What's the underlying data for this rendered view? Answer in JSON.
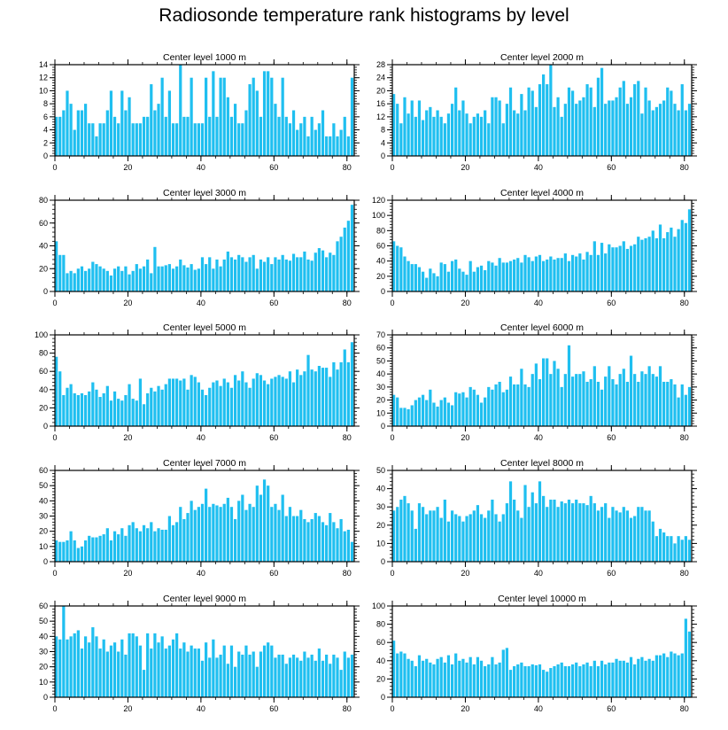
{
  "title": "Radiosonde temperature rank histograms by level",
  "bar_color": "#1fbff0",
  "chart_data": [
    {
      "type": "bar",
      "title": "Center level 1000 m",
      "xlabel": "",
      "ylabel": "",
      "xlim": [
        0,
        82
      ],
      "ylim": [
        0,
        14
      ],
      "xticks": [
        0,
        20,
        40,
        60,
        80
      ],
      "yticks": [
        0,
        2,
        4,
        6,
        8,
        10,
        12,
        14
      ],
      "categories_start": 0,
      "values": [
        6,
        6,
        7,
        10,
        8,
        4,
        7,
        7,
        8,
        5,
        5,
        3,
        5,
        5,
        7,
        10,
        6,
        5,
        10,
        7,
        9,
        5,
        5,
        5,
        6,
        6,
        11,
        7,
        8,
        12,
        6,
        10,
        5,
        5,
        14,
        6,
        6,
        12,
        5,
        5,
        5,
        12,
        6,
        13,
        6,
        12,
        12,
        9,
        6,
        8,
        5,
        5,
        7,
        11,
        12,
        10,
        6,
        13,
        13,
        12,
        8,
        6,
        12,
        6,
        5,
        7,
        4,
        5,
        6,
        3,
        6,
        4,
        5,
        7,
        3,
        3,
        5,
        3,
        4,
        6,
        3,
        12
      ]
    },
    {
      "type": "bar",
      "title": "Center level 2000 m",
      "xlabel": "",
      "ylabel": "",
      "xlim": [
        0,
        82
      ],
      "ylim": [
        0,
        28
      ],
      "xticks": [
        0,
        20,
        40,
        60,
        80
      ],
      "yticks": [
        0,
        4,
        8,
        12,
        16,
        20,
        24,
        28
      ],
      "categories_start": 0,
      "values": [
        19,
        16,
        10,
        18,
        13,
        17,
        12,
        17,
        11,
        14,
        15,
        12,
        14,
        12,
        10,
        13,
        16,
        21,
        14,
        17,
        13,
        10,
        12,
        13,
        12,
        14,
        10,
        18,
        18,
        17,
        10,
        16,
        21,
        14,
        13,
        19,
        14,
        21,
        20,
        15,
        22,
        25,
        22,
        28,
        15,
        18,
        12,
        16,
        21,
        20,
        16,
        17,
        18,
        22,
        21,
        15,
        24,
        27,
        16,
        17,
        17,
        18,
        21,
        23,
        16,
        18,
        22,
        23,
        13,
        21,
        17,
        14,
        15,
        16,
        17,
        21,
        20,
        16,
        14,
        22,
        14,
        16
      ]
    },
    {
      "type": "bar",
      "title": "Center level 3000 m",
      "xlabel": "",
      "ylabel": "",
      "xlim": [
        0,
        82
      ],
      "ylim": [
        0,
        80
      ],
      "xticks": [
        0,
        20,
        40,
        60,
        80
      ],
      "yticks": [
        0,
        20,
        40,
        60,
        80
      ],
      "categories_start": 0,
      "values": [
        44,
        32,
        32,
        16,
        18,
        16,
        20,
        22,
        18,
        20,
        26,
        24,
        22,
        20,
        18,
        14,
        20,
        22,
        18,
        22,
        15,
        18,
        24,
        20,
        22,
        28,
        16,
        39,
        22,
        22,
        23,
        24,
        20,
        22,
        28,
        23,
        21,
        24,
        19,
        20,
        30,
        24,
        30,
        20,
        28,
        22,
        28,
        35,
        30,
        28,
        32,
        30,
        26,
        30,
        32,
        20,
        28,
        26,
        30,
        24,
        30,
        28,
        32,
        28,
        27,
        33,
        30,
        30,
        35,
        28,
        27,
        34,
        38,
        36,
        30,
        34,
        32,
        44,
        48,
        56,
        62,
        76
      ]
    },
    {
      "type": "bar",
      "title": "Center level 4000 m",
      "xlabel": "",
      "ylabel": "",
      "xlim": [
        0,
        82
      ],
      "ylim": [
        0,
        120
      ],
      "xticks": [
        0,
        20,
        40,
        60,
        80
      ],
      "yticks": [
        0,
        20,
        40,
        60,
        80,
        100,
        120
      ],
      "categories_start": 0,
      "values": [
        66,
        60,
        58,
        46,
        40,
        36,
        36,
        32,
        26,
        18,
        30,
        24,
        20,
        38,
        36,
        26,
        40,
        42,
        30,
        26,
        22,
        40,
        26,
        32,
        34,
        28,
        40,
        38,
        34,
        44,
        38,
        38,
        40,
        42,
        44,
        38,
        48,
        45,
        40,
        46,
        48,
        40,
        42,
        46,
        42,
        44,
        44,
        50,
        40,
        48,
        46,
        50,
        42,
        52,
        48,
        66,
        48,
        64,
        50,
        62,
        58,
        58,
        60,
        66,
        56,
        60,
        62,
        72,
        68,
        70,
        72,
        80,
        70,
        88,
        70,
        78,
        84,
        72,
        82,
        94,
        90,
        108
      ]
    },
    {
      "type": "bar",
      "title": "Center level 5000 m",
      "xlabel": "",
      "ylabel": "",
      "xlim": [
        0,
        82
      ],
      "ylim": [
        0,
        100
      ],
      "xticks": [
        0,
        20,
        40,
        60,
        80
      ],
      "yticks": [
        0,
        20,
        40,
        60,
        80,
        100
      ],
      "categories_start": 0,
      "values": [
        76,
        60,
        34,
        42,
        46,
        36,
        34,
        36,
        34,
        38,
        48,
        40,
        32,
        36,
        44,
        28,
        38,
        30,
        28,
        34,
        46,
        30,
        28,
        52,
        24,
        36,
        42,
        38,
        44,
        40,
        46,
        52,
        52,
        52,
        50,
        52,
        40,
        56,
        54,
        48,
        40,
        34,
        42,
        48,
        50,
        44,
        52,
        48,
        42,
        56,
        50,
        60,
        48,
        42,
        52,
        58,
        56,
        50,
        46,
        52,
        54,
        56,
        54,
        52,
        60,
        48,
        62,
        56,
        60,
        78,
        62,
        60,
        66,
        64,
        64,
        54,
        70,
        62,
        70,
        84,
        70,
        92
      ]
    },
    {
      "type": "bar",
      "title": "Center level 6000 m",
      "xlabel": "",
      "ylabel": "",
      "xlim": [
        0,
        82
      ],
      "ylim": [
        0,
        70
      ],
      "xticks": [
        0,
        20,
        40,
        60,
        80
      ],
      "yticks": [
        0,
        10,
        20,
        30,
        40,
        50,
        60,
        70
      ],
      "categories_start": 0,
      "values": [
        24,
        22,
        14,
        14,
        13,
        16,
        20,
        22,
        24,
        20,
        28,
        18,
        15,
        20,
        22,
        18,
        16,
        26,
        25,
        26,
        22,
        30,
        28,
        24,
        18,
        22,
        30,
        28,
        32,
        34,
        26,
        28,
        38,
        32,
        32,
        44,
        32,
        30,
        40,
        48,
        36,
        52,
        52,
        40,
        50,
        44,
        30,
        40,
        62,
        38,
        40,
        40,
        42,
        34,
        36,
        46,
        34,
        28,
        38,
        46,
        36,
        32,
        40,
        44,
        34,
        54,
        40,
        34,
        42,
        40,
        46,
        40,
        38,
        46,
        34,
        34,
        36,
        32,
        22,
        32,
        24,
        30
      ]
    },
    {
      "type": "bar",
      "title": "Center level 7000 m",
      "xlabel": "",
      "ylabel": "",
      "xlim": [
        0,
        82
      ],
      "ylim": [
        0,
        60
      ],
      "xticks": [
        0,
        20,
        40,
        60,
        80
      ],
      "yticks": [
        0,
        10,
        20,
        30,
        40,
        50,
        60
      ],
      "categories_start": 0,
      "values": [
        14,
        13,
        13,
        14,
        20,
        14,
        9,
        10,
        14,
        17,
        16,
        16,
        17,
        18,
        22,
        14,
        20,
        18,
        22,
        17,
        24,
        26,
        22,
        20,
        24,
        22,
        26,
        20,
        22,
        21,
        21,
        30,
        24,
        26,
        36,
        28,
        32,
        40,
        34,
        36,
        38,
        48,
        36,
        38,
        37,
        36,
        38,
        42,
        36,
        28,
        40,
        44,
        34,
        38,
        36,
        50,
        44,
        54,
        50,
        36,
        38,
        34,
        44,
        30,
        36,
        30,
        30,
        34,
        28,
        26,
        28,
        32,
        30,
        26,
        24,
        32,
        26,
        22,
        28,
        20,
        21,
        13
      ]
    },
    {
      "type": "bar",
      "title": "Center level 8000 m",
      "xlabel": "",
      "ylabel": "",
      "xlim": [
        0,
        82
      ],
      "ylim": [
        0,
        50
      ],
      "xticks": [
        0,
        20,
        40,
        60,
        80
      ],
      "yticks": [
        0,
        10,
        20,
        30,
        40,
        50
      ],
      "categories_start": 0,
      "values": [
        28,
        30,
        34,
        36,
        32,
        28,
        18,
        32,
        30,
        26,
        28,
        28,
        30,
        24,
        34,
        22,
        28,
        26,
        25,
        22,
        25,
        26,
        28,
        31,
        26,
        24,
        28,
        34,
        26,
        22,
        26,
        32,
        44,
        34,
        28,
        24,
        42,
        30,
        38,
        32,
        44,
        36,
        30,
        34,
        34,
        30,
        33,
        32,
        34,
        32,
        34,
        32,
        32,
        31,
        36,
        32,
        28,
        30,
        32,
        24,
        30,
        28,
        27,
        30,
        28,
        24,
        25,
        30,
        30,
        28,
        28,
        22,
        14,
        18,
        16,
        14,
        14,
        10,
        14,
        12,
        14,
        12
      ]
    },
    {
      "type": "bar",
      "title": "Center level 9000 m",
      "xlabel": "",
      "ylabel": "",
      "xlim": [
        0,
        82
      ],
      "ylim": [
        0,
        60
      ],
      "xticks": [
        0,
        20,
        40,
        60,
        80
      ],
      "yticks": [
        0,
        10,
        20,
        30,
        40,
        50,
        60
      ],
      "categories_start": 0,
      "values": [
        40,
        38,
        60,
        38,
        40,
        42,
        44,
        32,
        40,
        36,
        46,
        40,
        32,
        38,
        30,
        34,
        36,
        30,
        38,
        28,
        42,
        42,
        40,
        34,
        18,
        42,
        32,
        42,
        36,
        40,
        32,
        34,
        38,
        42,
        32,
        36,
        30,
        34,
        32,
        32,
        24,
        36,
        26,
        38,
        26,
        28,
        34,
        22,
        34,
        20,
        30,
        28,
        34,
        28,
        30,
        20,
        30,
        34,
        36,
        34,
        26,
        28,
        28,
        22,
        26,
        28,
        26,
        24,
        30,
        26,
        28,
        24,
        32,
        24,
        28,
        22,
        28,
        26,
        18,
        30,
        26,
        28
      ]
    },
    {
      "type": "bar",
      "title": "Center level 10000 m",
      "xlabel": "",
      "ylabel": "",
      "xlim": [
        0,
        82
      ],
      "ylim": [
        0,
        100
      ],
      "xticks": [
        0,
        20,
        40,
        60,
        80
      ],
      "yticks": [
        0,
        20,
        40,
        60,
        80,
        100
      ],
      "categories_start": 0,
      "values": [
        62,
        48,
        50,
        48,
        42,
        40,
        34,
        46,
        40,
        42,
        38,
        36,
        42,
        44,
        38,
        46,
        36,
        48,
        40,
        42,
        38,
        44,
        36,
        44,
        40,
        34,
        36,
        44,
        36,
        38,
        52,
        54,
        30,
        34,
        36,
        38,
        34,
        34,
        36,
        35,
        36,
        30,
        28,
        32,
        34,
        36,
        38,
        34,
        34,
        36,
        38,
        34,
        36,
        38,
        34,
        40,
        34,
        40,
        36,
        38,
        38,
        42,
        40,
        40,
        38,
        44,
        36,
        42,
        44,
        40,
        42,
        40,
        46,
        46,
        48,
        44,
        50,
        48,
        46,
        48,
        86,
        72
      ]
    }
  ]
}
